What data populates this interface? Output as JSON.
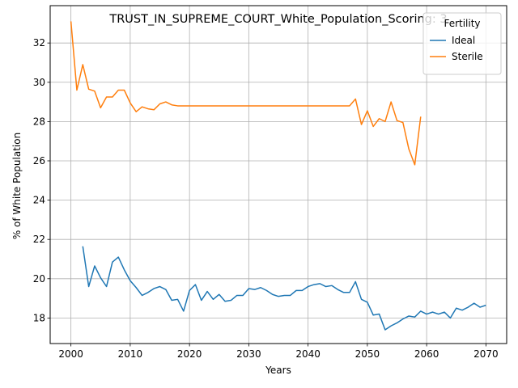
{
  "chart_data": {
    "type": "line",
    "title": "TRUST_IN_SUPREME_COURT_White_Population_Scoring: 3",
    "xlabel": "Years",
    "ylabel": "% of White Population",
    "xlim": [
      1996.5,
      2073.5
    ],
    "ylim": [
      16.7,
      33.9
    ],
    "xticks": [
      2000,
      2010,
      2020,
      2030,
      2040,
      2050,
      2060,
      2070
    ],
    "yticks": [
      18,
      20,
      22,
      24,
      26,
      28,
      30,
      32
    ],
    "grid": true,
    "legend": {
      "title": "Fertility",
      "position": "top-right"
    },
    "series": [
      {
        "name": "Ideal",
        "color": "#1f77b4",
        "x": [
          2002,
          2003,
          2004,
          2005,
          2006,
          2007,
          2008,
          2009,
          2010,
          2011,
          2012,
          2013,
          2014,
          2015,
          2016,
          2017,
          2018,
          2019,
          2020,
          2021,
          2022,
          2023,
          2024,
          2025,
          2026,
          2027,
          2028,
          2029,
          2030,
          2031,
          2032,
          2033,
          2034,
          2035,
          2036,
          2037,
          2038,
          2039,
          2040,
          2041,
          2042,
          2043,
          2044,
          2045,
          2046,
          2047,
          2048,
          2049,
          2050,
          2051,
          2052,
          2053,
          2054,
          2055,
          2056,
          2057,
          2058,
          2059,
          2060,
          2061,
          2062,
          2063,
          2064,
          2065,
          2066,
          2067,
          2068,
          2069,
          2070
        ],
        "y": [
          21.65,
          19.6,
          20.65,
          20.05,
          19.6,
          20.85,
          21.1,
          20.45,
          19.9,
          19.55,
          19.15,
          19.3,
          19.5,
          19.6,
          19.45,
          18.9,
          18.95,
          18.35,
          19.4,
          19.7,
          18.9,
          19.35,
          18.95,
          19.2,
          18.85,
          18.9,
          19.15,
          19.15,
          19.5,
          19.45,
          19.55,
          19.4,
          19.2,
          19.1,
          19.15,
          19.15,
          19.4,
          19.4,
          19.6,
          19.7,
          19.75,
          19.6,
          19.65,
          19.45,
          19.3,
          19.3,
          19.85,
          18.95,
          18.8,
          18.15,
          18.2,
          17.4,
          17.6,
          17.75,
          17.95,
          18.1,
          18.05,
          18.35,
          18.2,
          18.3,
          18.2,
          18.3,
          18.0,
          18.5,
          18.4,
          18.55,
          18.75,
          18.55,
          18.65
        ]
      },
      {
        "name": "Sterile",
        "color": "#ff7f0e",
        "x": [
          2000,
          2001,
          2002,
          2003,
          2004,
          2005,
          2006,
          2007,
          2008,
          2009,
          2010,
          2011,
          2012,
          2013,
          2014,
          2015,
          2016,
          2017,
          2018,
          2019,
          2020,
          2021,
          2022,
          2023,
          2024,
          2025,
          2026,
          2027,
          2028,
          2029,
          2030,
          2031,
          2032,
          2033,
          2034,
          2035,
          2036,
          2037,
          2038,
          2039,
          2040,
          2041,
          2042,
          2043,
          2044,
          2045,
          2046,
          2047,
          2048,
          2049,
          2050,
          2051,
          2052,
          2053,
          2054,
          2055,
          2056,
          2057,
          2058,
          2059
        ],
        "y": [
          33.1,
          29.6,
          30.9,
          29.65,
          29.55,
          28.7,
          29.25,
          29.25,
          29.6,
          29.6,
          28.95,
          28.5,
          28.75,
          28.65,
          28.6,
          28.9,
          29.0,
          28.85,
          28.8,
          28.8,
          28.8,
          28.8,
          28.8,
          28.8,
          28.8,
          28.8,
          28.8,
          28.8,
          28.8,
          28.8,
          28.8,
          28.8,
          28.8,
          28.8,
          28.8,
          28.8,
          28.8,
          28.8,
          28.8,
          28.8,
          28.8,
          28.8,
          28.8,
          28.8,
          28.8,
          28.8,
          28.8,
          28.8,
          29.15,
          27.85,
          28.55,
          27.75,
          28.15,
          28.0,
          29.0,
          28.05,
          27.95,
          26.6,
          25.8,
          28.25
        ]
      }
    ]
  }
}
